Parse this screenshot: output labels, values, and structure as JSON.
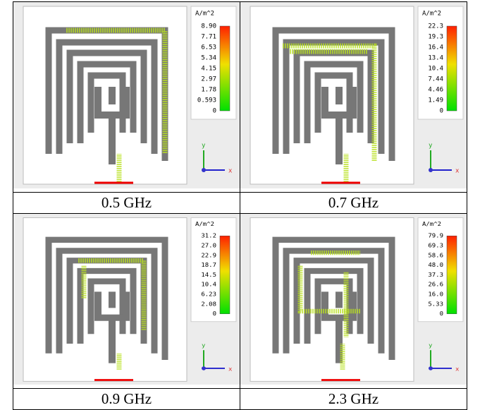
{
  "panels": [
    {
      "caption": "0.5 GHz",
      "unit": "A/m^2",
      "scale": [
        "8.90",
        "7.71",
        "6.53",
        "5.34",
        "4.15",
        "2.97",
        "1.78",
        "0.593",
        "0"
      ],
      "axis_y": "y",
      "axis_x": "x"
    },
    {
      "caption": "0.7 GHz",
      "unit": "A/m^2",
      "scale": [
        "22.3",
        "19.3",
        "16.4",
        "13.4",
        "10.4",
        "7.44",
        "4.46",
        "1.49",
        "0"
      ],
      "axis_y": "y",
      "axis_x": "x"
    },
    {
      "caption": "0.9 GHz",
      "unit": "A/m^2",
      "scale": [
        "31.2",
        "27.0",
        "22.9",
        "18.7",
        "14.5",
        "10.4",
        "6.23",
        "2.08",
        "0"
      ],
      "axis_y": "y",
      "axis_x": "x"
    },
    {
      "caption": "2.3 GHz",
      "unit": "A/m^2",
      "scale": [
        "79.9",
        "69.3",
        "58.6",
        "48.0",
        "37.3",
        "26.6",
        "16.0",
        "5.33",
        "0"
      ],
      "axis_y": "y",
      "axis_x": "x"
    }
  ]
}
